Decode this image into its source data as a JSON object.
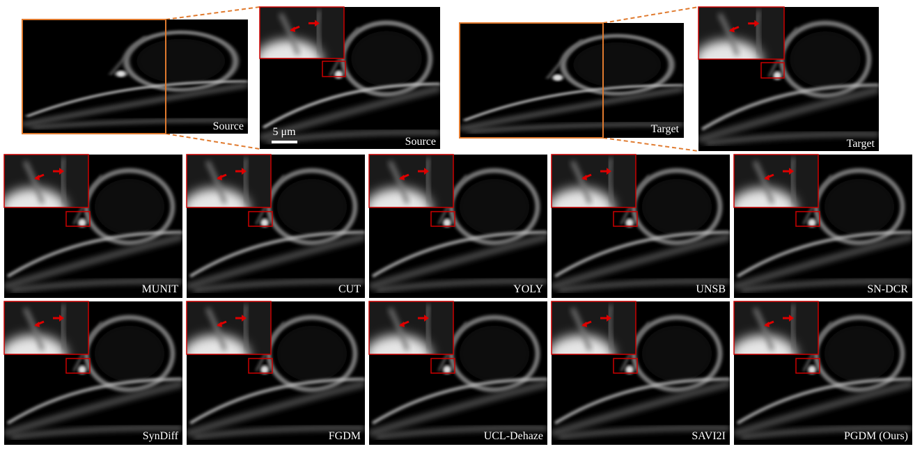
{
  "top": {
    "source_label": "Source",
    "source_zoom_label": "Source",
    "scale_bar": "5 μm",
    "target_label": "Target",
    "target_zoom_label": "Target"
  },
  "methods": [
    "MUNIT",
    "CUT",
    "YOLY",
    "UNSB",
    "SN-DCR",
    "SynDiff",
    "FGDM",
    "UCL-Dehaze",
    "SAVI2I",
    "PGDM (Ours)"
  ]
}
